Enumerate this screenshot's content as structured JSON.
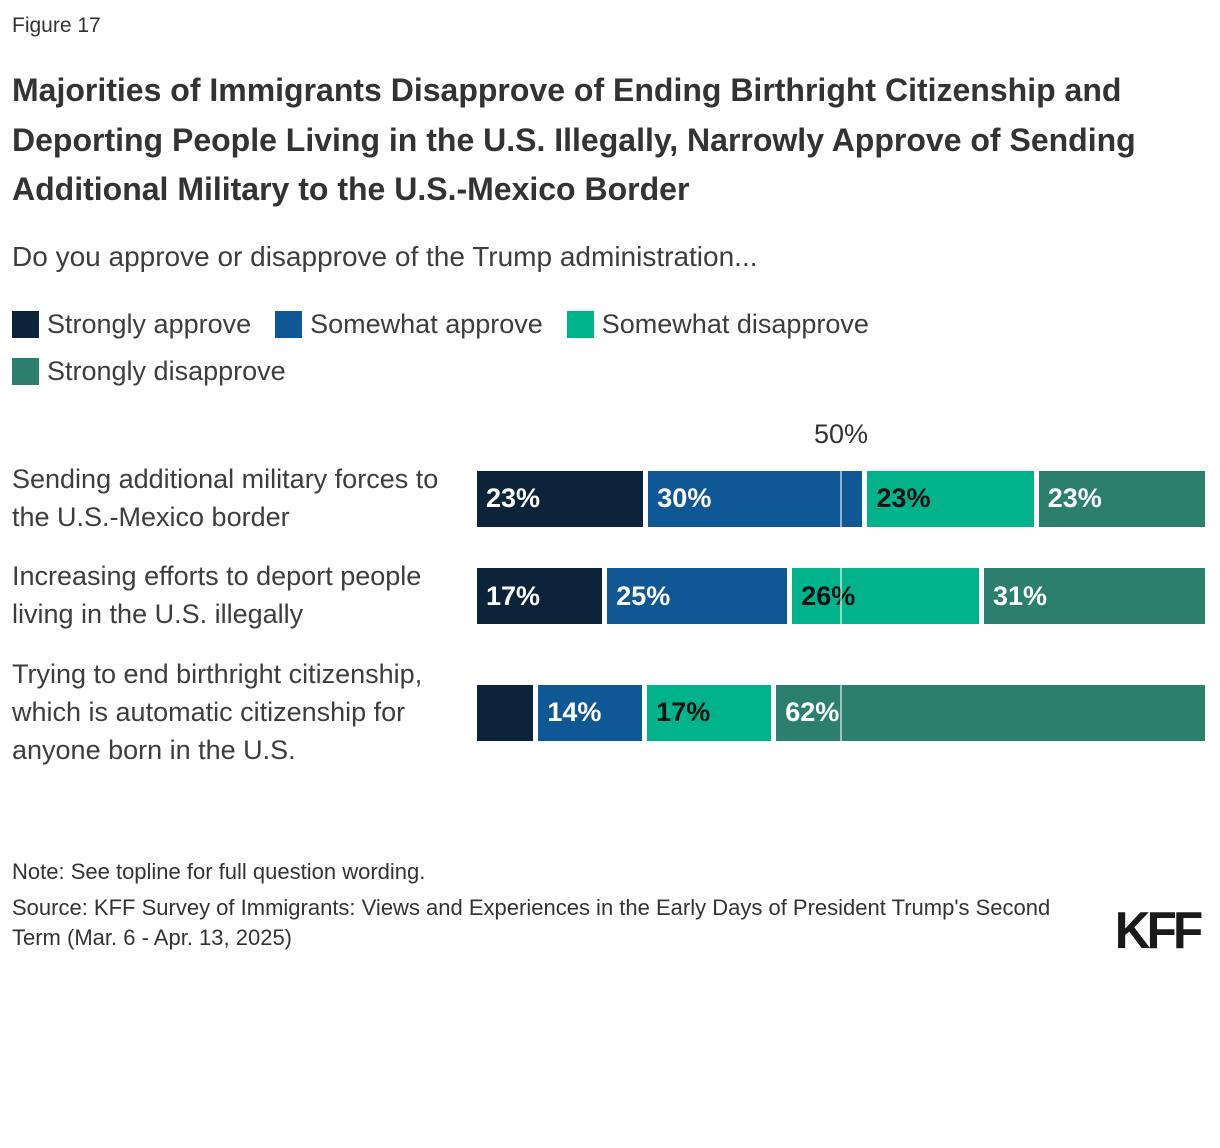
{
  "figure_label": "Figure 17",
  "title": "Majorities of Immigrants Disapprove of Ending Birthright Citizenship and Deporting People Living in the U.S. Illegally, Narrowly Approve of Sending Additional Military to the U.S.-Mexico Border",
  "subtitle": "Do you approve or disapprove of the Trump administration...",
  "note": "Note: See topline for full question wording.",
  "source": "Source: KFF Survey of Immigrants: Views and Experiences in the Early Days of President Trump's Second Term (Mar. 6 - Apr. 13, 2025)",
  "logo_text": "KFF",
  "colors": {
    "strongly_approve": "#0d2339",
    "somewhat_approve": "#0f5795",
    "somewhat_disapprove": "#00b38b",
    "strongly_disapprove": "#2b7f6c",
    "text": "#333333",
    "gridline": "rgba(255,255,255,0.55)"
  },
  "chart_data": {
    "type": "bar",
    "orientation": "horizontal-stacked",
    "unit": "%",
    "xlim": [
      0,
      100
    ],
    "legend_position": "top",
    "gridline": {
      "value": 50,
      "label": "50%"
    },
    "categories": [
      "Sending additional military forces to the U.S.-Mexico border",
      "Increasing efforts to deport people living in the U.S. illegally",
      "Trying to end birthright citizenship, which is automatic citizenship for anyone born in the U.S."
    ],
    "series": [
      {
        "name": "Strongly approve",
        "color": "#0d2339",
        "label_color": "#ffffff",
        "values": [
          23,
          17,
          7
        ],
        "hide_labels": [
          false,
          false,
          true
        ]
      },
      {
        "name": "Somewhat approve",
        "color": "#0f5795",
        "label_color": "#ffffff",
        "values": [
          30,
          25,
          14
        ],
        "hide_labels": [
          false,
          false,
          false
        ]
      },
      {
        "name": "Somewhat disapprove",
        "color": "#00b38b",
        "label_color": "#111111",
        "values": [
          23,
          26,
          17
        ],
        "hide_labels": [
          false,
          false,
          false
        ]
      },
      {
        "name": "Strongly disapprove",
        "color": "#2b7f6c",
        "label_color": "#ffffff",
        "values": [
          23,
          31,
          62
        ],
        "hide_labels": [
          false,
          false,
          false
        ]
      }
    ]
  }
}
